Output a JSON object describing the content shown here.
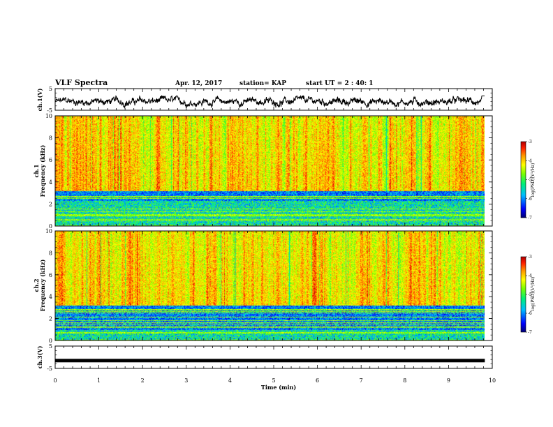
{
  "header": {
    "title": "VLF Spectra",
    "date": "Apr. 12, 2017",
    "station": "station= KAP",
    "start_ut": "start UT =  2 : 40: 1"
  },
  "chart_data": [
    {
      "type": "line",
      "name": "ch1-waveform",
      "ylabel": "ch.1(V)",
      "ylim": [
        -5,
        5
      ],
      "ytick_labels": [
        "5",
        "-5"
      ],
      "xlim": [
        0,
        10
      ],
      "x_end": 9.83,
      "style": "noisy band around -1 V, amplitude about +/-2.5 V"
    },
    {
      "type": "heatmap",
      "name": "ch1-spectrogram",
      "ylabel": "ch.1",
      "ylabel2": "Frequency (kHz)",
      "ylim": [
        0,
        10
      ],
      "ytick_labels": [
        "0",
        "2",
        "4",
        "6",
        "8",
        "10"
      ],
      "xlim": [
        0,
        10
      ],
      "x_end": 9.83,
      "colorbar": {
        "label": "log(PSD)(V²/Hz)",
        "range": [
          -7,
          -3
        ],
        "tick_labels": [
          "-3",
          "-4",
          "-5",
          "-6",
          "-7"
        ]
      },
      "bands": [
        {
          "from_khz": 3.2,
          "to_khz": 10,
          "level": "high (-3.5 to -4.5)"
        },
        {
          "from_khz": 2.3,
          "to_khz": 3.2,
          "level": "low (-5.5 to -6.5)"
        },
        {
          "from_khz": 0,
          "to_khz": 2.3,
          "level": "mixed with horizontal lines"
        }
      ]
    },
    {
      "type": "heatmap",
      "name": "ch2-spectrogram",
      "ylabel": "ch.2",
      "ylabel2": "Frequency (kHz)",
      "ylim": [
        0,
        10
      ],
      "ytick_labels": [
        "0",
        "2",
        "4",
        "6",
        "8",
        "10"
      ],
      "xlim": [
        0,
        10
      ],
      "x_end": 9.83,
      "colorbar": {
        "label": "log(PSD)(V²/Hz)",
        "range": [
          -7,
          -3
        ],
        "tick_labels": [
          "-3",
          "-4",
          "-5",
          "-6",
          "-7"
        ]
      },
      "bands": [
        {
          "from_khz": 3.2,
          "to_khz": 10,
          "level": "high (-3.5 to -4.5)"
        },
        {
          "from_khz": 1.0,
          "to_khz": 3.2,
          "level": "low (-5.5 to -6.8)"
        },
        {
          "from_khz": 0,
          "to_khz": 1.0,
          "level": "mixed with horizontal lines"
        }
      ]
    },
    {
      "type": "line",
      "name": "ch3-waveform",
      "ylabel": "ch.3(V)",
      "ylim": [
        -5,
        5
      ],
      "ytick_labels": [
        "5",
        "-5"
      ],
      "xlim": [
        0,
        10
      ],
      "x_end": 9.83,
      "constant_value": -1.5
    }
  ],
  "x_axis": {
    "label": "Time (min)",
    "tick_labels": [
      "0",
      "1",
      "2",
      "3",
      "4",
      "5",
      "6",
      "7",
      "8",
      "9",
      "10"
    ]
  }
}
